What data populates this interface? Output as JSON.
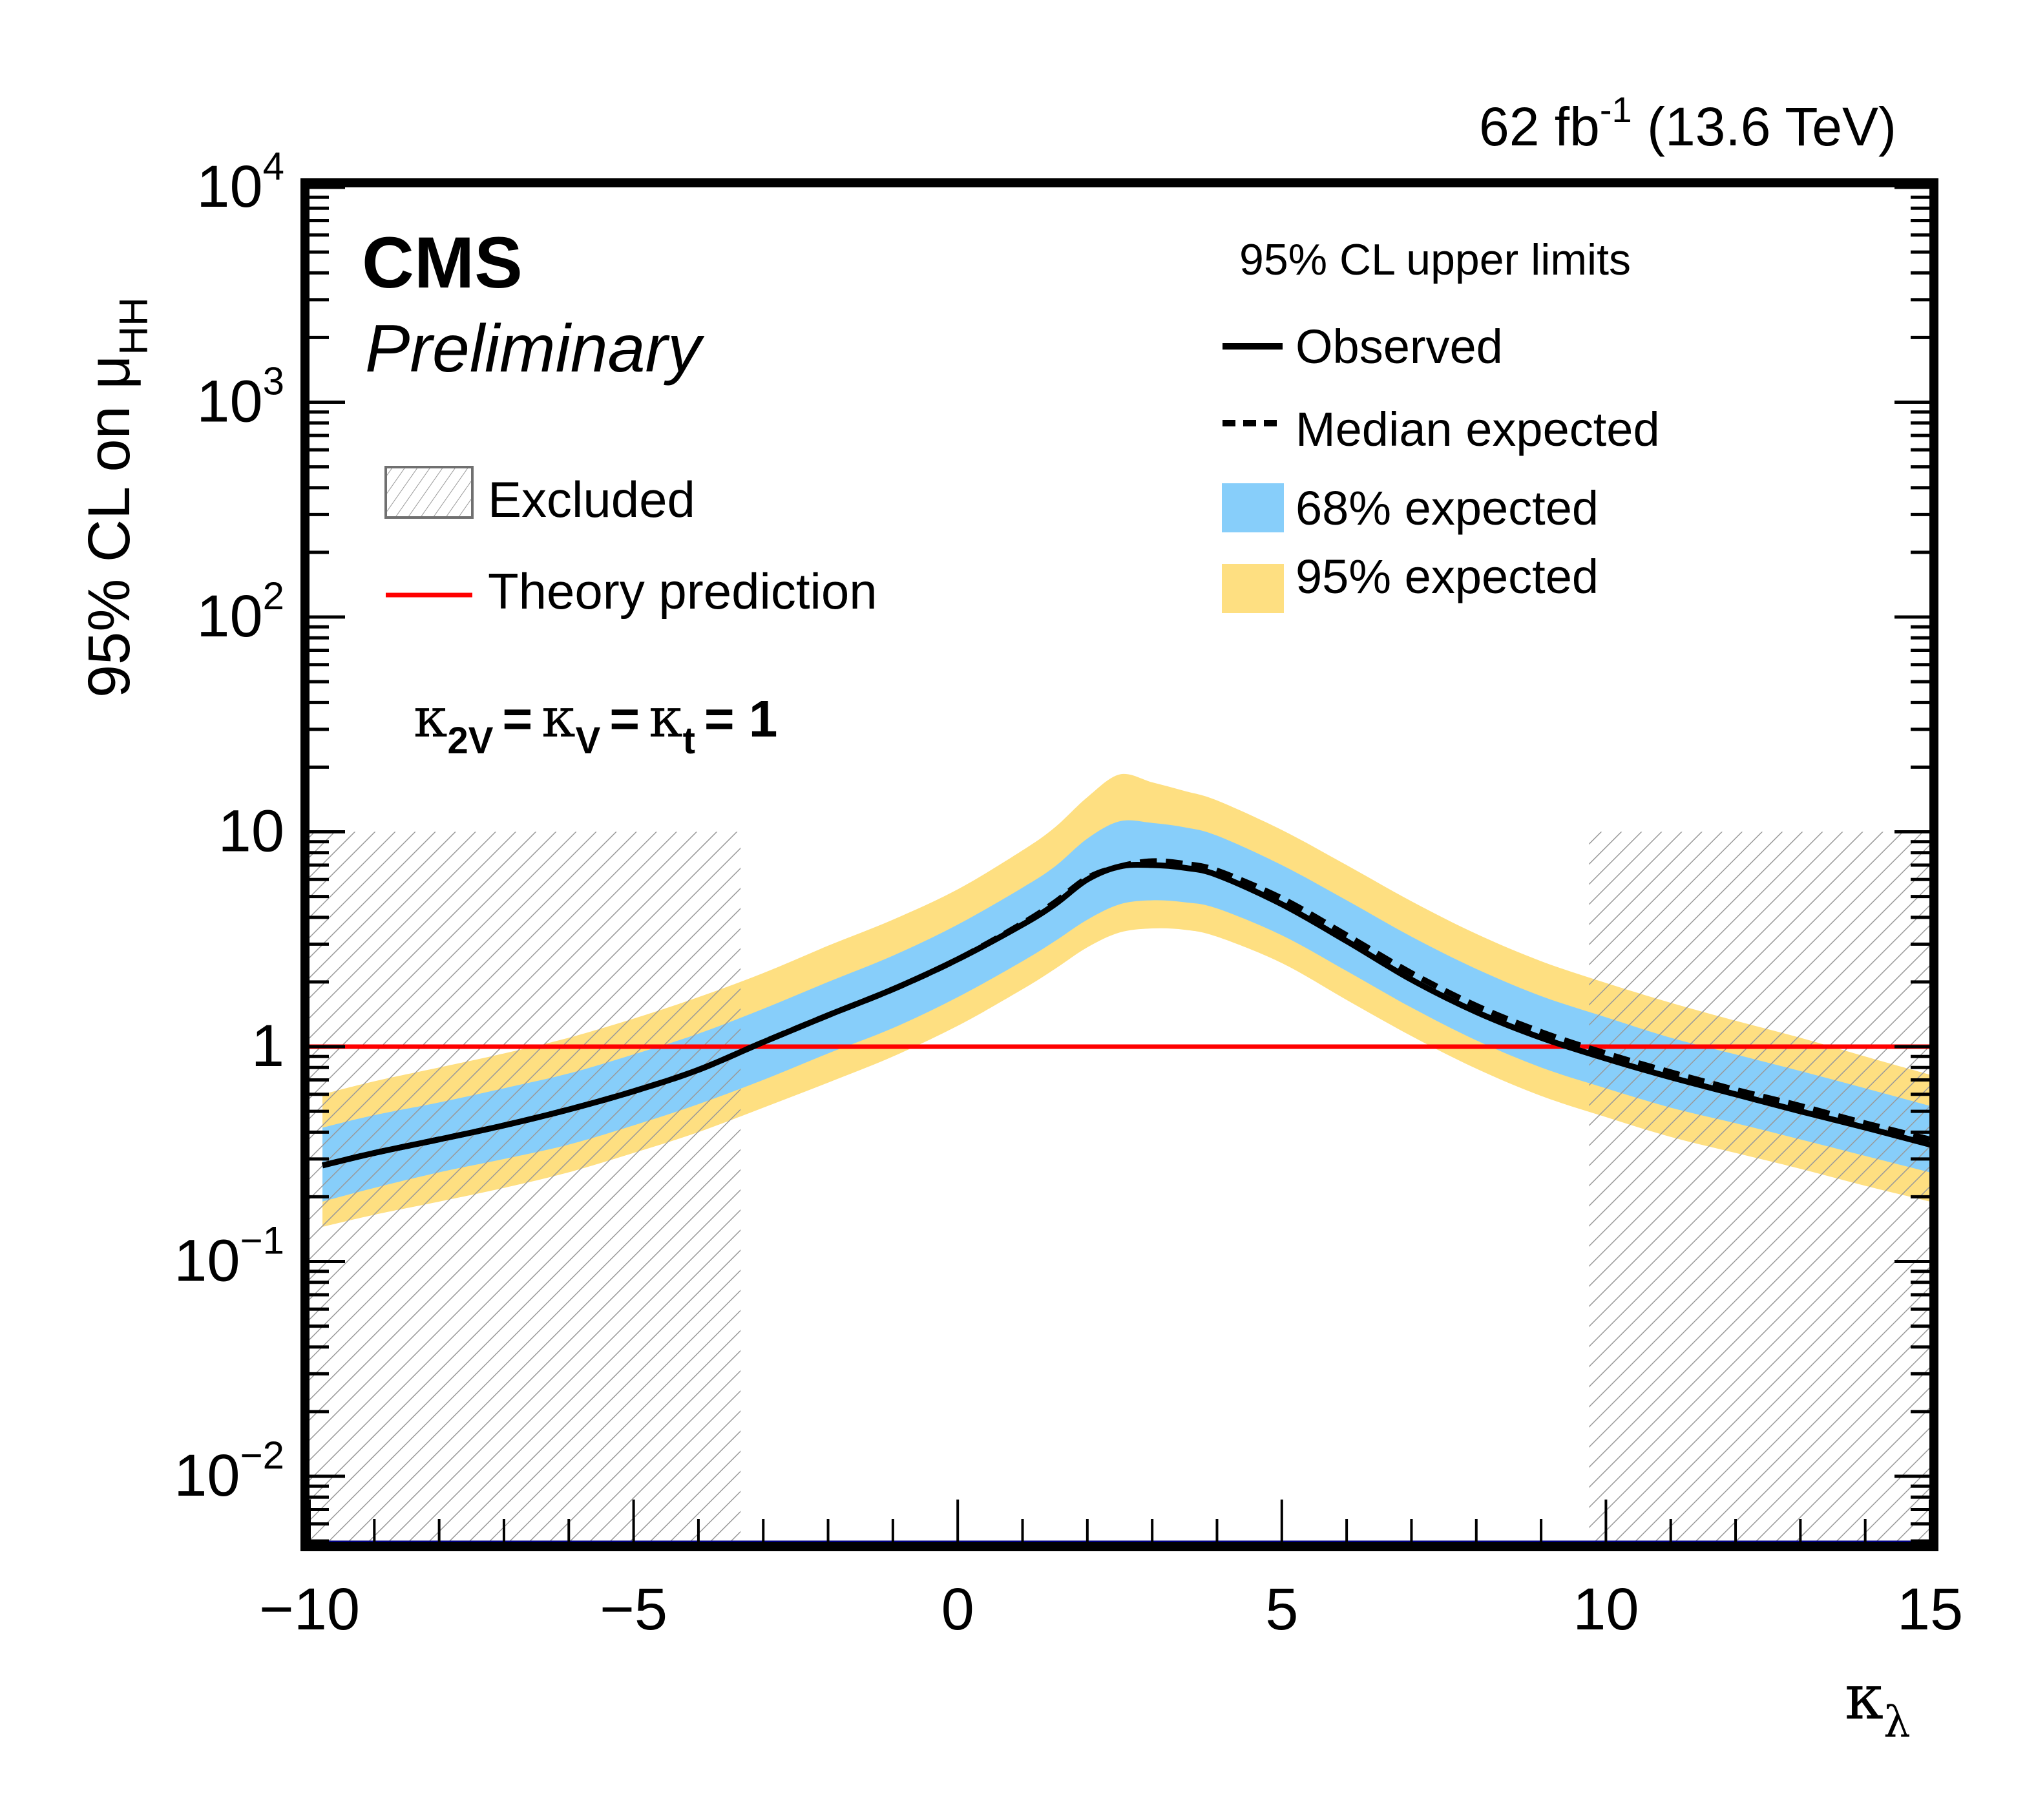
{
  "chart_data": {
    "type": "line",
    "title": "",
    "lumi_label": {
      "main": "62 fb",
      "sup": "-1",
      "energy": " (13.6 TeV)"
    },
    "experiment": "CMS",
    "status": "Preliminary",
    "xlabel": {
      "main": "κ",
      "sub": "λ"
    },
    "ylabel": {
      "main": "95% CL on μ",
      "sub": "HH"
    },
    "xlim": [
      -10,
      15
    ],
    "ylim": [
      0.0048,
      10000
    ],
    "yscale": "log",
    "x_ticks": [
      {
        "value": -10,
        "label": "−10"
      },
      {
        "value": -5,
        "label": "−5"
      },
      {
        "value": 0,
        "label": "0"
      },
      {
        "value": 5,
        "label": "5"
      },
      {
        "value": 10,
        "label": "10"
      },
      {
        "value": 15,
        "label": "15"
      }
    ],
    "y_ticks": [
      {
        "value": 0.01,
        "base": "10",
        "exp": "−2"
      },
      {
        "value": 0.1,
        "base": "10",
        "exp": "−1"
      },
      {
        "value": 1,
        "base": "1",
        "exp": ""
      },
      {
        "value": 10,
        "base": "10",
        "exp": ""
      },
      {
        "value": 100,
        "base": "10",
        "exp": "2"
      },
      {
        "value": 1000,
        "base": "10",
        "exp": "3"
      },
      {
        "value": 10000,
        "base": "10",
        "exp": "4"
      }
    ],
    "couplings_label": {
      "k1": "κ",
      "s1": "2V",
      "k2": "κ",
      "s2": "V",
      "k3": "κ",
      "s3": "t",
      "value": "= 1",
      "eq": "="
    },
    "legend_left": [
      {
        "label": "Excluded",
        "style": "hatch"
      },
      {
        "label": "Theory prediction",
        "style": "red-line"
      }
    ],
    "legend_right": {
      "header": "95% CL upper limits",
      "entries": [
        {
          "label": "Observed",
          "style": "solid"
        },
        {
          "label": "Median expected",
          "style": "dashed"
        },
        {
          "label": "68% expected",
          "style": "band68"
        },
        {
          "label": "95% expected",
          "style": "band95"
        }
      ]
    },
    "colors": {
      "observed": "#000000",
      "expected": "#000000",
      "band68": "#87cefa",
      "band95": "#fedf81",
      "theory": "#ff0000",
      "hatch": "#999999",
      "axis_bottom": "#000080"
    },
    "theory_value": 1,
    "excluded_regions": [
      {
        "x_min": -10,
        "x_max": -3.35,
        "y_max": 10
      },
      {
        "x_min": 9.74,
        "x_max": 15,
        "y_max": 10
      }
    ],
    "x": [
      -9.8,
      -9,
      -8,
      -7,
      -6,
      -5,
      -4,
      -3,
      -2,
      -1,
      0,
      1,
      1.5,
      2,
      2.5,
      3,
      3.5,
      4,
      5,
      6,
      7,
      8,
      9,
      10,
      11,
      12,
      13,
      14,
      15
    ],
    "series": [
      {
        "name": "Observed",
        "values": [
          0.28,
          0.32,
          0.37,
          0.43,
          0.51,
          0.62,
          0.78,
          1.05,
          1.4,
          1.85,
          2.55,
          3.7,
          4.6,
          6.0,
          6.9,
          7.0,
          6.8,
          6.3,
          4.6,
          3.1,
          2.05,
          1.45,
          1.1,
          0.88,
          0.72,
          0.6,
          0.5,
          0.42,
          0.35
        ]
      },
      {
        "name": "Median expected",
        "values": [
          0.28,
          0.32,
          0.37,
          0.43,
          0.51,
          0.62,
          0.78,
          1.05,
          1.4,
          1.85,
          2.55,
          3.75,
          4.7,
          6.1,
          6.9,
          7.3,
          7.1,
          6.6,
          4.9,
          3.3,
          2.2,
          1.55,
          1.17,
          0.93,
          0.76,
          0.63,
          0.53,
          0.44,
          0.37
        ]
      },
      {
        "name": "68% expected",
        "lower": [
          0.19,
          0.22,
          0.26,
          0.3,
          0.35,
          0.43,
          0.54,
          0.7,
          0.93,
          1.22,
          1.7,
          2.5,
          3.1,
          3.9,
          4.6,
          4.8,
          4.7,
          4.4,
          3.3,
          2.25,
          1.52,
          1.07,
          0.8,
          0.64,
          0.52,
          0.44,
          0.37,
          0.31,
          0.26
        ],
        "upper": [
          0.42,
          0.48,
          0.55,
          0.64,
          0.75,
          0.92,
          1.15,
          1.5,
          2.0,
          2.65,
          3.7,
          5.5,
          6.9,
          9.3,
          11.2,
          11.0,
          10.5,
          9.6,
          7.0,
          4.8,
          3.25,
          2.3,
          1.72,
          1.37,
          1.1,
          0.92,
          0.77,
          0.64,
          0.53
        ]
      },
      {
        "name": "95% expected",
        "lower": [
          0.145,
          0.165,
          0.19,
          0.22,
          0.26,
          0.32,
          0.4,
          0.52,
          0.68,
          0.9,
          1.25,
          1.85,
          2.3,
          2.9,
          3.4,
          3.55,
          3.5,
          3.25,
          2.45,
          1.65,
          1.12,
          0.79,
          0.59,
          0.47,
          0.38,
          0.32,
          0.27,
          0.225,
          0.19
        ]
      },
      {
        "name": "95% expected upper",
        "upper": [
          0.6,
          0.69,
          0.8,
          0.93,
          1.1,
          1.35,
          1.7,
          2.2,
          2.95,
          3.9,
          5.4,
          8.2,
          10.5,
          14.5,
          18.5,
          17.0,
          15.5,
          14.0,
          10.2,
          7.0,
          4.75,
          3.35,
          2.5,
          1.98,
          1.6,
          1.32,
          1.1,
          0.9,
          0.74
        ]
      }
    ]
  }
}
